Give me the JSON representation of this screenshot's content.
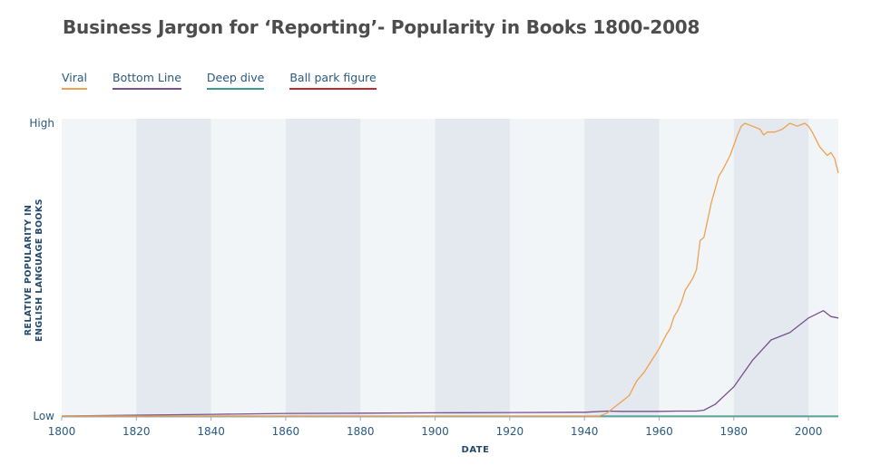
{
  "chart_data": {
    "type": "line",
    "title": "Business Jargon for ‘Reporting’- Popularity in Books 1800-2008",
    "xlabel": "DATE",
    "ylabel_lines": [
      "RELATIVE POPULARITY IN",
      "ENGLISH LANGUAGE BOOKS"
    ],
    "xlim": [
      1800,
      2008
    ],
    "ylim": [
      0,
      100
    ],
    "y_ticks": [
      {
        "value": 0,
        "label": "Low"
      },
      {
        "value": 100,
        "label": "High"
      }
    ],
    "x_ticks": [
      1800,
      1820,
      1840,
      1860,
      1880,
      1900,
      1920,
      1940,
      1960,
      1980,
      2000
    ],
    "shaded_bands": [
      [
        1820,
        1840
      ],
      [
        1860,
        1880
      ],
      [
        1900,
        1920
      ],
      [
        1940,
        1960
      ],
      [
        1980,
        2000
      ]
    ],
    "legend_position": "top-left",
    "series": [
      {
        "name": "Viral",
        "color": "#f0a050",
        "x": [
          1800,
          1944,
          1946,
          1948,
          1950,
          1952,
          1954,
          1956,
          1958,
          1960,
          1962,
          1963,
          1964,
          1965,
          1966,
          1967,
          1968,
          1969,
          1970,
          1971,
          1972,
          1974,
          1976,
          1977,
          1979,
          1981,
          1982,
          1983,
          1985,
          1987,
          1988,
          1989,
          1991,
          1993,
          1995,
          1997,
          1999,
          2000,
          2001,
          2003,
          2005,
          2006,
          2007,
          2008
        ],
        "y": [
          0,
          0,
          1,
          3,
          5,
          7,
          12,
          15,
          19,
          23,
          28,
          30,
          34,
          36,
          39,
          43,
          45,
          47,
          50,
          60,
          61,
          73,
          82,
          84,
          89,
          96,
          99,
          100,
          99,
          98,
          96,
          97,
          97,
          98,
          100,
          99,
          100,
          99,
          97,
          92,
          89,
          90,
          88,
          83
        ]
      },
      {
        "name": "Bottom Line",
        "color": "#7a4f8e",
        "x": [
          1800,
          1820,
          1840,
          1860,
          1880,
          1900,
          1920,
          1940,
          1946,
          1950,
          1955,
          1960,
          1965,
          1970,
          1972,
          1975,
          1980,
          1985,
          1990,
          1995,
          2000,
          2004,
          2006,
          2008
        ],
        "y": [
          0,
          0.3,
          0.6,
          0.9,
          1,
          1.1,
          1.2,
          1.3,
          1.7,
          1.6,
          1.6,
          1.6,
          1.7,
          1.7,
          2,
          4,
          10,
          19,
          26,
          28.5,
          33.5,
          36,
          34,
          33.5
        ]
      },
      {
        "name": "Deep dive",
        "color": "#3a9c8c",
        "x": [
          1800,
          2008
        ],
        "y": [
          0,
          0
        ]
      },
      {
        "name": "Ball park figure",
        "color": "#c0282c",
        "x": [],
        "y": []
      }
    ]
  }
}
